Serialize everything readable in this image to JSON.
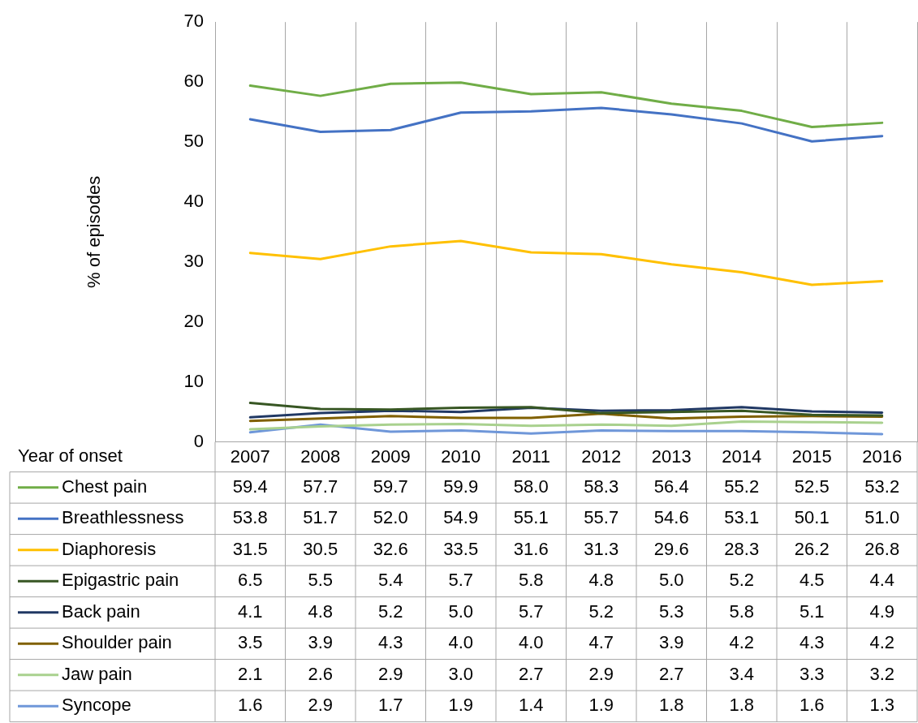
{
  "chart_data": {
    "type": "line",
    "ylabel": "% of episodes",
    "xlabel": "Year of onset",
    "categories": [
      "2007",
      "2008",
      "2009",
      "2010",
      "2011",
      "2012",
      "2013",
      "2014",
      "2015",
      "2016"
    ],
    "ylim": [
      0,
      70
    ],
    "yticks": [
      0,
      10,
      20,
      30,
      40,
      50,
      60,
      70
    ],
    "grid": "x",
    "legend": "bottom",
    "marker": "none",
    "line_style": "solid",
    "series": [
      {
        "name": "Chest pain",
        "color": "#70ad47",
        "values": [
          59.4,
          57.7,
          59.7,
          59.9,
          58.0,
          58.3,
          56.4,
          55.2,
          52.5,
          53.2
        ],
        "value_labels": [
          "59.4",
          "57.7",
          "59.7",
          "59.9",
          "58.0",
          "58.3",
          "56.4",
          "55.2",
          "52.5",
          "53.2"
        ]
      },
      {
        "name": "Breathlessness",
        "color": "#4472c4",
        "values": [
          53.8,
          51.7,
          52.0,
          54.9,
          55.1,
          55.7,
          54.6,
          53.1,
          50.1,
          51.0
        ],
        "value_labels": [
          "53.8",
          "51.7",
          "52.0",
          "54.9",
          "55.1",
          "55.7",
          "54.6",
          "53.1",
          "50.1",
          "51.0"
        ]
      },
      {
        "name": "Diaphoresis",
        "color": "#ffc000",
        "values": [
          31.5,
          30.5,
          32.6,
          33.5,
          31.6,
          31.3,
          29.6,
          28.3,
          26.2,
          26.8
        ],
        "value_labels": [
          "31.5",
          "30.5",
          "32.6",
          "33.5",
          "31.6",
          "31.3",
          "29.6",
          "28.3",
          "26.2",
          "26.8"
        ]
      },
      {
        "name": "Epigastric pain",
        "color": "#375623",
        "values": [
          6.5,
          5.5,
          5.4,
          5.7,
          5.8,
          4.8,
          5.0,
          5.2,
          4.5,
          4.4
        ],
        "value_labels": [
          "6.5",
          "5.5",
          "5.4",
          "5.7",
          "5.8",
          "4.8",
          "5.0",
          "5.2",
          "4.5",
          "4.4"
        ]
      },
      {
        "name": "Back pain",
        "color": "#203864",
        "values": [
          4.1,
          4.8,
          5.2,
          5.0,
          5.7,
          5.2,
          5.3,
          5.8,
          5.1,
          4.9
        ],
        "value_labels": [
          "4.1",
          "4.8",
          "5.2",
          "5.0",
          "5.7",
          "5.2",
          "5.3",
          "5.8",
          "5.1",
          "4.9"
        ]
      },
      {
        "name": "Shoulder pain",
        "color": "#806000",
        "values": [
          3.5,
          3.9,
          4.3,
          4.0,
          4.0,
          4.7,
          3.9,
          4.2,
          4.3,
          4.2
        ],
        "value_labels": [
          "3.5",
          "3.9",
          "4.3",
          "4.0",
          "4.0",
          "4.7",
          "3.9",
          "4.2",
          "4.3",
          "4.2"
        ]
      },
      {
        "name": "Jaw pain",
        "color": "#a9d18e",
        "values": [
          2.1,
          2.6,
          2.9,
          3.0,
          2.7,
          2.9,
          2.7,
          3.4,
          3.3,
          3.2
        ],
        "value_labels": [
          "2.1",
          "2.6",
          "2.9",
          "3.0",
          "2.7",
          "2.9",
          "2.7",
          "3.4",
          "3.3",
          "3.2"
        ]
      },
      {
        "name": "Syncope",
        "color": "#6f97d9",
        "values": [
          1.6,
          2.9,
          1.7,
          1.9,
          1.4,
          1.9,
          1.8,
          1.8,
          1.6,
          1.3
        ],
        "value_labels": [
          "1.6",
          "2.9",
          "1.7",
          "1.9",
          "1.4",
          "1.9",
          "1.8",
          "1.8",
          "1.6",
          "1.3"
        ]
      }
    ]
  }
}
